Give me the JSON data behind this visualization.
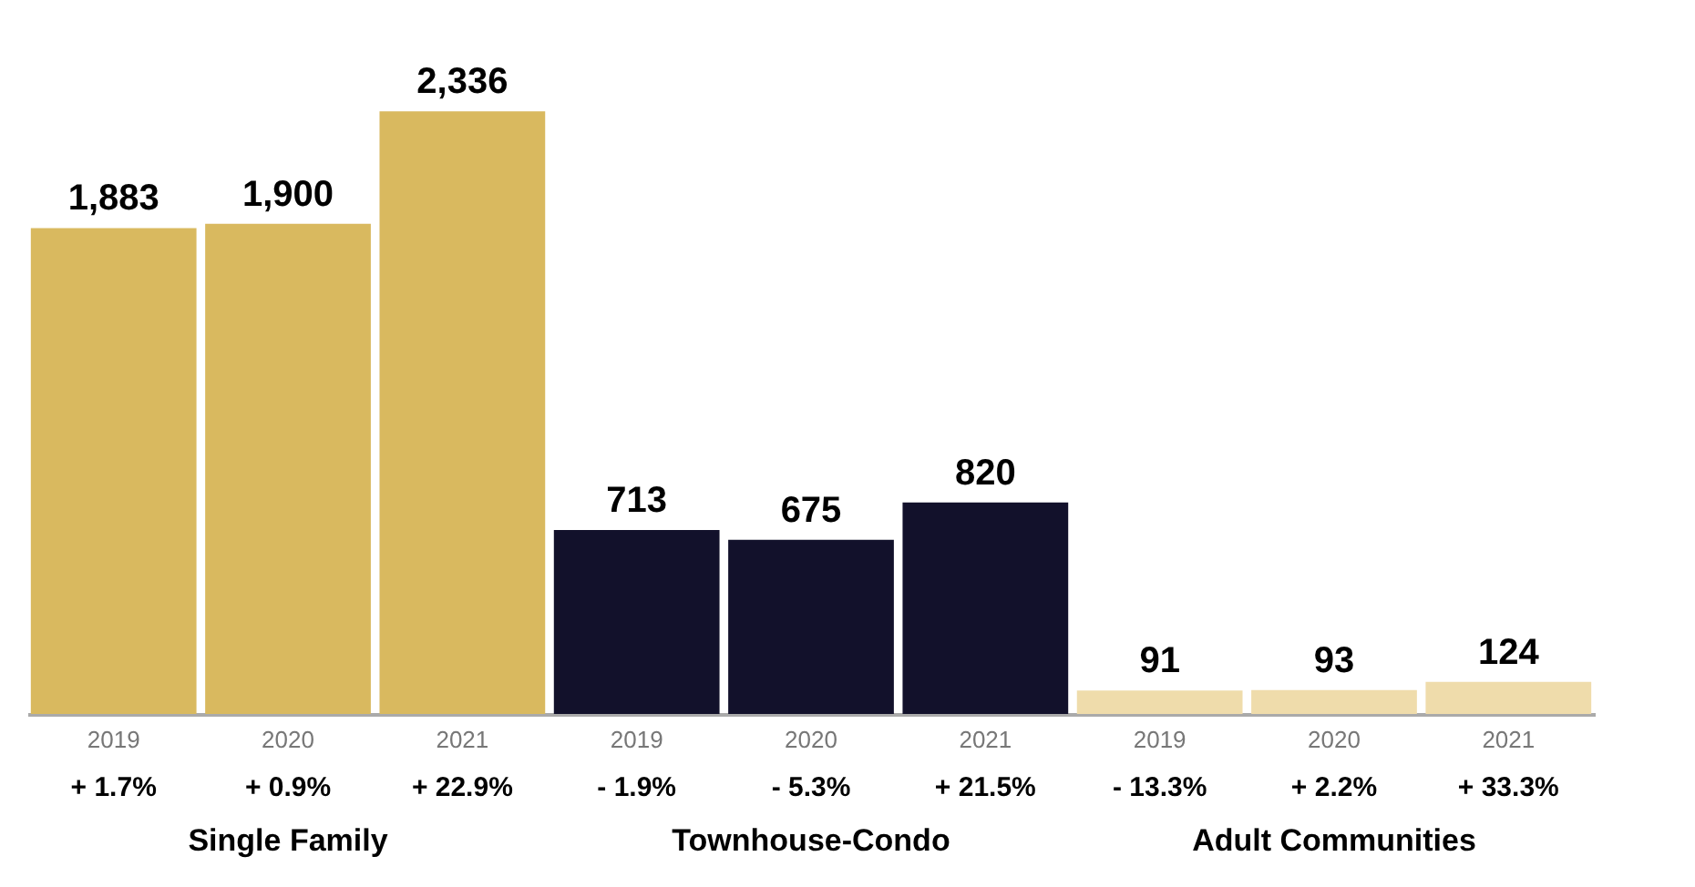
{
  "chart_data": {
    "type": "bar",
    "categories": [
      "2019",
      "2020",
      "2021",
      "2019",
      "2020",
      "2021",
      "2019",
      "2020",
      "2021"
    ],
    "values": [
      1883,
      1900,
      2336,
      713,
      675,
      820,
      91,
      93,
      124
    ],
    "colors": [
      "#d9b95f",
      "#d9b95f",
      "#d9b95f",
      "#12112b",
      "#12112b",
      "#12112b",
      "#efdcab",
      "#efdcab",
      "#efdcab"
    ],
    "value_labels": [
      "1,883",
      "1,900",
      "2,336",
      "713",
      "675",
      "820",
      "91",
      "93",
      "124"
    ],
    "annotations": [
      "+ 1.7%",
      "+ 0.9%",
      "+ 22.9%",
      "- 1.9%",
      "- 5.3%",
      "+ 21.5%",
      "- 13.3%",
      "+ 2.2%",
      "+ 33.3%",
      "Single Family",
      "Townhouse-Condo",
      "Adult Communities"
    ],
    "grid": false
  }
}
